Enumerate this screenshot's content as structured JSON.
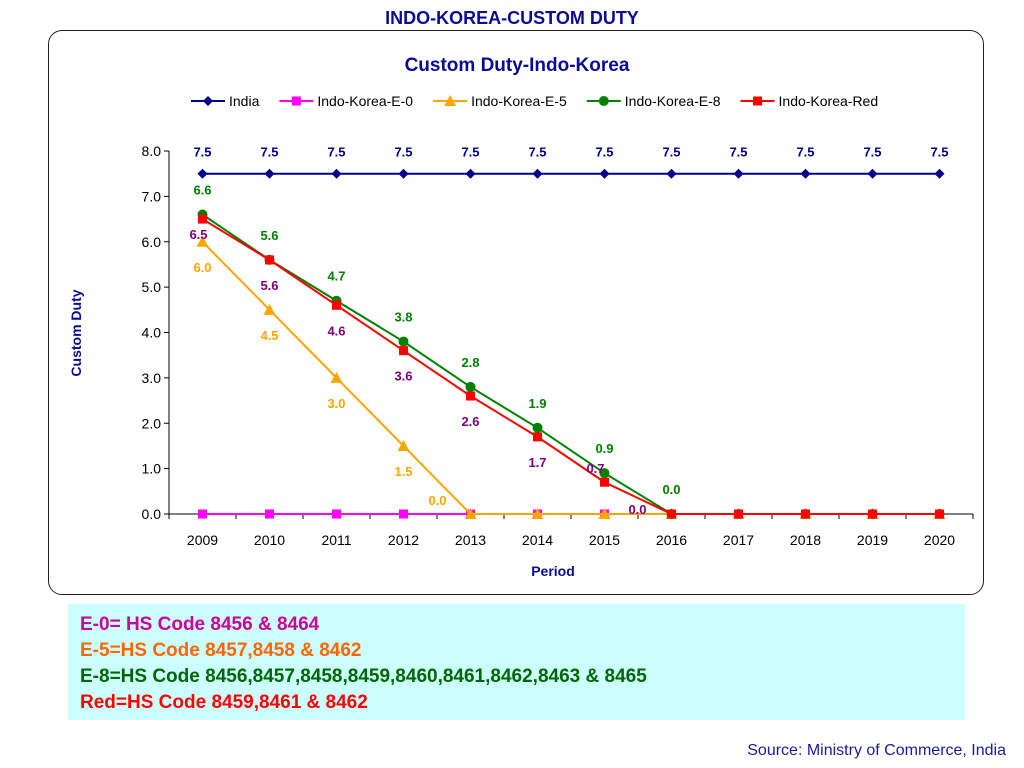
{
  "page_title": "INDO-KOREA-CUSTOM DUTY",
  "colors": {
    "India": "#00008b",
    "Indo-Korea-E-0": "#ff00ff",
    "Indo-Korea-E-5": "#ffa500",
    "Indo-Korea-E-8": "#008000",
    "Indo-Korea-Red": "#ff0000",
    "label_india": "#00008b",
    "label_e5": "#ffa500",
    "label_e8": "#008000",
    "label_red": "#800080"
  },
  "chart_data": {
    "type": "line",
    "title": "Custom Duty-Indo-Korea",
    "xlabel": "Period",
    "ylabel": "Custom Duty",
    "ylim": [
      0,
      8
    ],
    "yticks": [
      "0.0",
      "1.0",
      "2.0",
      "3.0",
      "4.0",
      "5.0",
      "6.0",
      "7.0",
      "8.0"
    ],
    "categories": [
      "2009",
      "2010",
      "2011",
      "2012",
      "2013",
      "2014",
      "2015",
      "2016",
      "2017",
      "2018",
      "2019",
      "2020"
    ],
    "legend": "top",
    "series": [
      {
        "name": "India",
        "marker": "diamond",
        "values": [
          7.5,
          7.5,
          7.5,
          7.5,
          7.5,
          7.5,
          7.5,
          7.5,
          7.5,
          7.5,
          7.5,
          7.5
        ]
      },
      {
        "name": "Indo-Korea-E-0",
        "marker": "square",
        "values": [
          0,
          0,
          0,
          0,
          0,
          0,
          0,
          0,
          0,
          0,
          0,
          0
        ]
      },
      {
        "name": "Indo-Korea-E-5",
        "marker": "triangle",
        "values": [
          6.0,
          4.5,
          3.0,
          1.5,
          0,
          0,
          0,
          0,
          0,
          0,
          0,
          0
        ]
      },
      {
        "name": "Indo-Korea-E-8",
        "marker": "circle",
        "values": [
          6.6,
          5.6,
          4.7,
          3.8,
          2.8,
          1.9,
          0.9,
          0,
          0,
          0,
          0,
          0
        ]
      },
      {
        "name": "Indo-Korea-Red",
        "marker": "square",
        "values": [
          6.5,
          5.6,
          4.6,
          3.6,
          2.6,
          1.7,
          0.7,
          0,
          0,
          0,
          0,
          0
        ]
      }
    ],
    "data_labels": [
      {
        "series": "India",
        "index": 0,
        "text": "7.5"
      },
      {
        "series": "India",
        "index": 1,
        "text": "7.5"
      },
      {
        "series": "India",
        "index": 2,
        "text": "7.5"
      },
      {
        "series": "India",
        "index": 3,
        "text": "7.5"
      },
      {
        "series": "India",
        "index": 4,
        "text": "7.5"
      },
      {
        "series": "India",
        "index": 5,
        "text": "7.5"
      },
      {
        "series": "India",
        "index": 6,
        "text": "7.5"
      },
      {
        "series": "India",
        "index": 7,
        "text": "7.5"
      },
      {
        "series": "India",
        "index": 8,
        "text": "7.5"
      },
      {
        "series": "India",
        "index": 9,
        "text": "7.5"
      },
      {
        "series": "India",
        "index": 10,
        "text": "7.5"
      },
      {
        "series": "India",
        "index": 11,
        "text": "7.5"
      },
      {
        "series": "Indo-Korea-E-8",
        "index": 0,
        "text": "6.6"
      },
      {
        "series": "Indo-Korea-E-8",
        "index": 1,
        "text": "5.6"
      },
      {
        "series": "Indo-Korea-E-8",
        "index": 2,
        "text": "4.7"
      },
      {
        "series": "Indo-Korea-E-8",
        "index": 3,
        "text": "3.8"
      },
      {
        "series": "Indo-Korea-E-8",
        "index": 4,
        "text": "2.8"
      },
      {
        "series": "Indo-Korea-E-8",
        "index": 5,
        "text": "1.9"
      },
      {
        "series": "Indo-Korea-E-8",
        "index": 6,
        "text": "0.9"
      },
      {
        "series": "Indo-Korea-E-8",
        "index": 7,
        "text": "0.0"
      },
      {
        "series": "Indo-Korea-Red",
        "index": 0,
        "text": "6.5"
      },
      {
        "series": "Indo-Korea-Red",
        "index": 1,
        "text": "5.6"
      },
      {
        "series": "Indo-Korea-Red",
        "index": 2,
        "text": "4.6"
      },
      {
        "series": "Indo-Korea-Red",
        "index": 3,
        "text": "3.6"
      },
      {
        "series": "Indo-Korea-Red",
        "index": 4,
        "text": "2.6"
      },
      {
        "series": "Indo-Korea-Red",
        "index": 5,
        "text": "1.7"
      },
      {
        "series": "Indo-Korea-Red",
        "index": 6,
        "text": "0.7"
      },
      {
        "series": "Indo-Korea-Red",
        "index": 7,
        "text": "0.0"
      },
      {
        "series": "Indo-Korea-E-5",
        "index": 0,
        "text": "6.0"
      },
      {
        "series": "Indo-Korea-E-5",
        "index": 1,
        "text": "4.5"
      },
      {
        "series": "Indo-Korea-E-5",
        "index": 2,
        "text": "3.0"
      },
      {
        "series": "Indo-Korea-E-5",
        "index": 3,
        "text": "1.5"
      },
      {
        "series": "Indo-Korea-E-5",
        "index": 4,
        "text": "0.0"
      }
    ]
  },
  "notes": [
    {
      "label": "E-0= HS Code ",
      "codes": "8456 & 8464",
      "color": "#cc0099"
    },
    {
      "label": "E-5=HS Code ",
      "codes": "8457,8458 & 8462",
      "color": "#ff6600"
    },
    {
      "label": "E-8=HS Code ",
      "codes": "8456,8457,8458,8459,8460,8461,8462,8463 & 8465",
      "color": "#006600"
    },
    {
      "label": "Red=HS Code ",
      "codes": "8459,8461 & 8462",
      "color": "#ff0000"
    }
  ],
  "source": "Source: Ministry of Commerce, India"
}
